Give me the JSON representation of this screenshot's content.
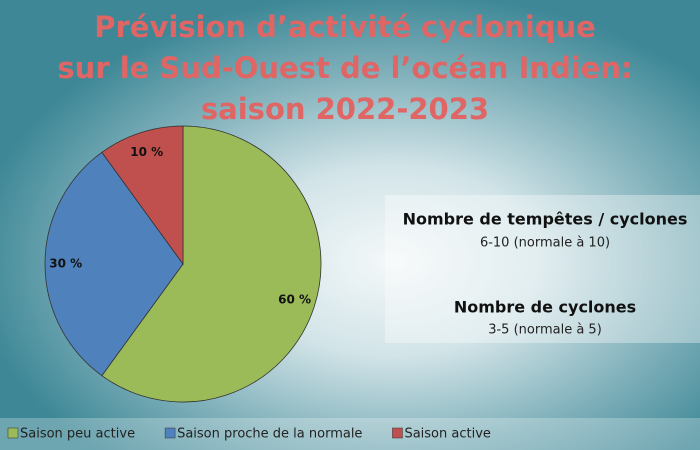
{
  "chart_data": {
    "type": "pie",
    "title": [
      "Prévision d’activité cyclonique",
      "sur le Sud-Ouest de l’océan Indien:",
      "saison 2022-2023"
    ],
    "categories": [
      "Saison peu active",
      "Saison proche de la normale",
      "Saison active"
    ],
    "values": [
      60,
      30,
      10
    ],
    "value_labels": [
      "60 %",
      "30 %",
      "10 %"
    ],
    "colors": [
      "#9bbb59",
      "#4f81bd",
      "#c0504d"
    ],
    "annotations": [
      "Nombre de tempêtes / cyclones",
      "6-10 (normale à 10)",
      "Nombre de cyclones",
      "3-5 (normale à 5)"
    ],
    "legend": "bottom"
  }
}
